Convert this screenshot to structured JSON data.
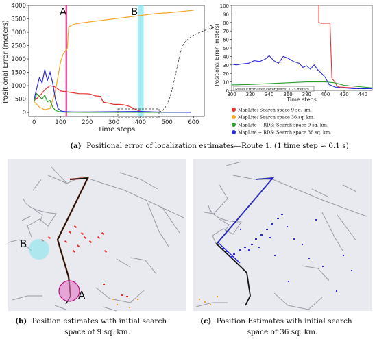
{
  "chart_data": [
    {
      "type": "line",
      "panel": "main",
      "xlabel": "Time steps",
      "ylabel": "Positional Error (meters)",
      "xlim": [
        -20,
        640
      ],
      "ylim": [
        -150,
        4000
      ],
      "xticks": [
        0,
        100,
        200,
        300,
        400,
        500,
        600
      ],
      "yticks": [
        0,
        500,
        1000,
        1500,
        2000,
        2500,
        3000,
        3500,
        4000
      ],
      "markers": [
        {
          "label": "A",
          "x": 121,
          "color": "#d4147c"
        },
        {
          "label": "B",
          "x": 390,
          "x2": 412,
          "color": "#7fe6ee"
        }
      ],
      "series": [
        {
          "name": "MapLite: Search space 9 sq. km.",
          "color": "#e8312b",
          "x": [
            0,
            20,
            40,
            60,
            80,
            100,
            120,
            130,
            150,
            170,
            190,
            210,
            230,
            250,
            260,
            280,
            300,
            320,
            340,
            360,
            380,
            395,
            410,
            430,
            460,
            500
          ],
          "y": [
            450,
            600,
            850,
            1000,
            950,
            800,
            780,
            760,
            730,
            700,
            700,
            690,
            620,
            600,
            380,
            350,
            300,
            300,
            280,
            220,
            120,
            60,
            20,
            10,
            8,
            5
          ]
        },
        {
          "name": "MapLite: Search space 36 sq. km.",
          "color": "#f5a623",
          "x": [
            0,
            20,
            40,
            60,
            80,
            100,
            110,
            118,
            125,
            130,
            150,
            180,
            220,
            260,
            300,
            340,
            380,
            420,
            460,
            500,
            540,
            580,
            600
          ],
          "y": [
            400,
            200,
            100,
            150,
            800,
            1900,
            2200,
            2300,
            2400,
            3200,
            3300,
            3350,
            3400,
            3450,
            3500,
            3550,
            3600,
            3650,
            3700,
            3720,
            3760,
            3800,
            3820
          ]
        },
        {
          "name": "MapLite + RDS: Search space 9 sq. km.",
          "color": "#2a9d2a",
          "x": [
            0,
            10,
            20,
            30,
            40,
            50,
            60,
            70,
            80,
            90,
            100,
            120,
            150,
            200,
            300,
            400,
            500,
            590
          ],
          "y": [
            400,
            700,
            600,
            500,
            650,
            400,
            450,
            200,
            80,
            40,
            20,
            10,
            8,
            6,
            5,
            5,
            5,
            5
          ]
        },
        {
          "name": "MapLite + RDS: Search space 36 sq. km.",
          "color": "#2b2bd8",
          "x": [
            0,
            10,
            20,
            30,
            40,
            50,
            60,
            70,
            80,
            90,
            100,
            110,
            120,
            150,
            200,
            300,
            400,
            500,
            590
          ],
          "y": [
            500,
            900,
            1300,
            1100,
            1600,
            1200,
            1500,
            1100,
            500,
            150,
            60,
            40,
            30,
            20,
            20,
            30,
            40,
            10,
            5
          ]
        }
      ]
    },
    {
      "type": "line",
      "panel": "inset",
      "xlabel": "Time steps",
      "ylabel": "Positional Error (meters)",
      "xlim": [
        300,
        450
      ],
      "ylim": [
        0,
        100
      ],
      "xticks": [
        300,
        320,
        340,
        360,
        380,
        400,
        420,
        440
      ],
      "yticks": [
        0,
        10,
        20,
        30,
        40,
        50,
        60,
        70,
        80,
        90,
        100
      ],
      "annotation": "Mean Error after covergence: 1.75 meters",
      "series": [
        {
          "name": "MapLite: Search space 9 sq. km.",
          "color": "#e8312b",
          "x": [
            393,
            393,
            395,
            405,
            407,
            410,
            412,
            414,
            430,
            450
          ],
          "y": [
            100,
            80,
            79,
            79,
            14,
            10,
            6,
            4,
            3,
            2
          ]
        },
        {
          "name": "MapLite + RDS: Search space 9 sq. km.",
          "color": "#2a9d2a",
          "x": [
            300,
            320,
            340,
            360,
            380,
            400,
            410,
            420,
            440,
            450
          ],
          "y": [
            6.5,
            7,
            8,
            9,
            10,
            10,
            9,
            6,
            4,
            3
          ]
        },
        {
          "name": "MapLite + RDS: Search space 36 sq. km.",
          "color": "#2b2bd8",
          "x": [
            300,
            305,
            310,
            318,
            324,
            330,
            336,
            340,
            345,
            350,
            355,
            360,
            366,
            372,
            376,
            380,
            384,
            388,
            392,
            396,
            400,
            404,
            410,
            416,
            420,
            430,
            440,
            450
          ],
          "y": [
            31,
            30,
            31,
            32,
            35,
            34,
            37,
            41,
            35,
            32,
            40,
            38,
            34,
            32,
            27,
            29,
            25,
            30,
            24,
            20,
            15,
            7,
            4,
            3,
            3,
            2,
            2,
            2
          ]
        }
      ]
    }
  ],
  "legend": [
    {
      "text": "MapLite: Search space 9 sq. km.",
      "color": "#e8312b"
    },
    {
      "text": "MapLite: Search space 36 sq. km.",
      "color": "#f5a623"
    },
    {
      "text": "MapLite + RDS: Search space 9 sq. km.",
      "color": "#2a9d2a"
    },
    {
      "text": "MapLite + RDS: Search space 36 sq. km.",
      "color": "#2b2bd8"
    }
  ],
  "labels": {
    "a": "A",
    "b": "B",
    "map_b": "B",
    "map_a": "A"
  },
  "captions": {
    "a_tag": "(a)",
    "a_text": "Positional error of localization estimates—Route 1. (1 time step ≈ 0.1 s)",
    "b_tag": "(b)",
    "b_line1": "Position estimates with initial search",
    "b_line2": "space of 9 sq. km.",
    "c_tag": "(c)",
    "c_line1": "Position Estimates with initial search",
    "c_line2": "space of 36 sq. km."
  },
  "colors": {
    "map_bg": "#e9e9f0",
    "road": "#9a9aa5",
    "route": "#111111",
    "marker_a": "#d4147c",
    "marker_b": "#7fe6ee"
  }
}
